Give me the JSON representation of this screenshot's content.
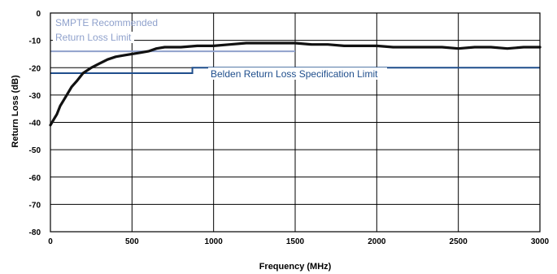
{
  "chart_data": {
    "type": "line",
    "title": "",
    "xlabel": "Frequency (MHz)",
    "ylabel": "Return Loss (dB)",
    "xlim": [
      0,
      3000
    ],
    "ylim": [
      -80,
      0
    ],
    "x_ticks": [
      0,
      500,
      1000,
      1500,
      2000,
      2500,
      3000
    ],
    "y_ticks": [
      0,
      -10,
      -20,
      -30,
      -40,
      -50,
      -60,
      -70,
      -80
    ],
    "grid": true,
    "series": [
      {
        "name": "",
        "color": "#111111",
        "x": [
          0,
          20,
          40,
          60,
          80,
          100,
          130,
          160,
          200,
          250,
          300,
          350,
          400,
          450,
          500,
          550,
          600,
          650,
          700,
          800,
          900,
          1000,
          1100,
          1200,
          1300,
          1400,
          1500,
          1600,
          1700,
          1800,
          1900,
          2000,
          2100,
          2200,
          2300,
          2400,
          2500,
          2600,
          2700,
          2800,
          2900,
          3000
        ],
        "y": [
          -41,
          -39,
          -37,
          -34,
          -32,
          -30,
          -27,
          -25,
          -22,
          -20,
          -18.5,
          -17,
          -16,
          -15.5,
          -15,
          -14.5,
          -14,
          -13,
          -12.5,
          -12.5,
          -12,
          -12,
          -11.5,
          -11,
          -11,
          -11,
          -11,
          -11.5,
          -11.5,
          -12,
          -12,
          -12,
          -12.5,
          -12.5,
          -12.5,
          -12.5,
          -13,
          -12.5,
          -12.5,
          -13,
          -12.5,
          -12.5
        ]
      }
    ],
    "limits": [
      {
        "label": "SMPTE Recommended Return Loss Limit",
        "label_lines": [
          "SMPTE Recommended",
          "Return Loss Limit"
        ],
        "color": "#8fa1cc",
        "points": [
          [
            0,
            -14
          ],
          [
            1500,
            -14
          ]
        ]
      },
      {
        "label": "Belden Return Loss Specification Limit",
        "color": "#1f4e8c",
        "points": [
          [
            0,
            -22
          ],
          [
            870,
            -22
          ],
          [
            870,
            -20
          ],
          [
            3000,
            -20
          ]
        ]
      }
    ]
  }
}
